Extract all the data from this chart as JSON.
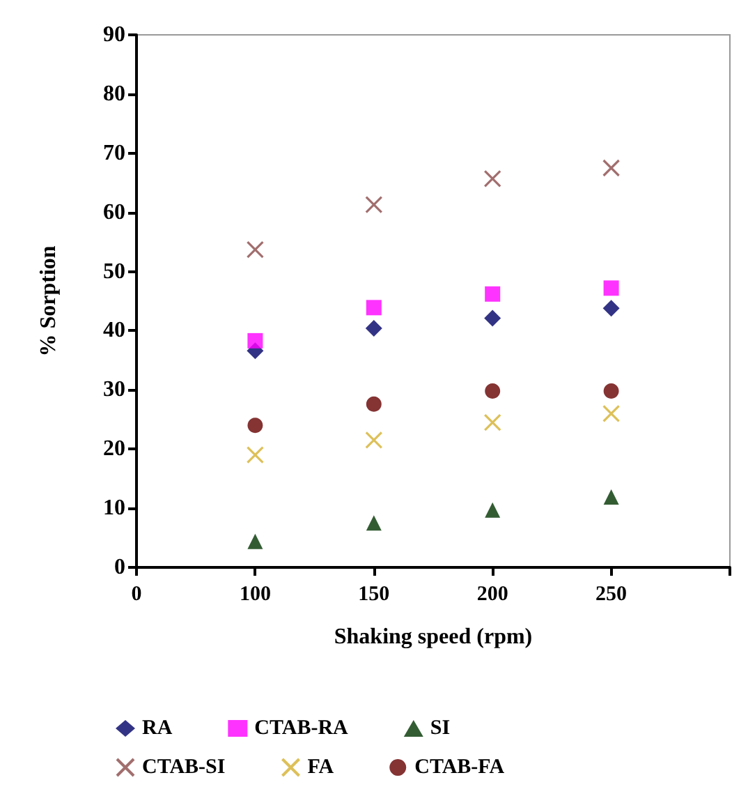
{
  "chart_data": {
    "type": "scatter",
    "xlabel": "Shaking speed (rpm)",
    "ylabel": "% Sorption",
    "categories": [
      "0",
      "100",
      "150",
      "200",
      "250",
      null
    ],
    "ylim": [
      0,
      90
    ],
    "yticks": [
      0,
      10,
      20,
      30,
      40,
      50,
      60,
      70,
      80,
      90
    ],
    "grid": false,
    "legend": "bottom",
    "series": [
      {
        "name": "RA",
        "color": "#000066",
        "marker": "diamond",
        "values": [
          null,
          36.6,
          40.4,
          42.1,
          43.8,
          null
        ]
      },
      {
        "name": "CTAB-RA",
        "color": "#ff00ff",
        "marker": "square",
        "values": [
          null,
          38.3,
          43.9,
          46.2,
          47.2,
          null
        ]
      },
      {
        "name": "SI",
        "color": "#003300",
        "marker": "triangle",
        "values": [
          null,
          4.4,
          7.5,
          9.7,
          11.9,
          null
        ]
      },
      {
        "name": "CTAB-SI",
        "color": "#8b4a4a",
        "marker": "cross",
        "values": [
          null,
          53.7,
          61.3,
          65.7,
          67.5,
          null
        ]
      },
      {
        "name": "FA",
        "color": "#d4b030",
        "marker": "cross",
        "values": [
          null,
          19,
          21.5,
          24.5,
          26,
          null
        ]
      },
      {
        "name": "CTAB-FA",
        "color": "#660000",
        "marker": "circle",
        "values": [
          null,
          24,
          27.6,
          29.8,
          29.8,
          null
        ]
      }
    ]
  }
}
